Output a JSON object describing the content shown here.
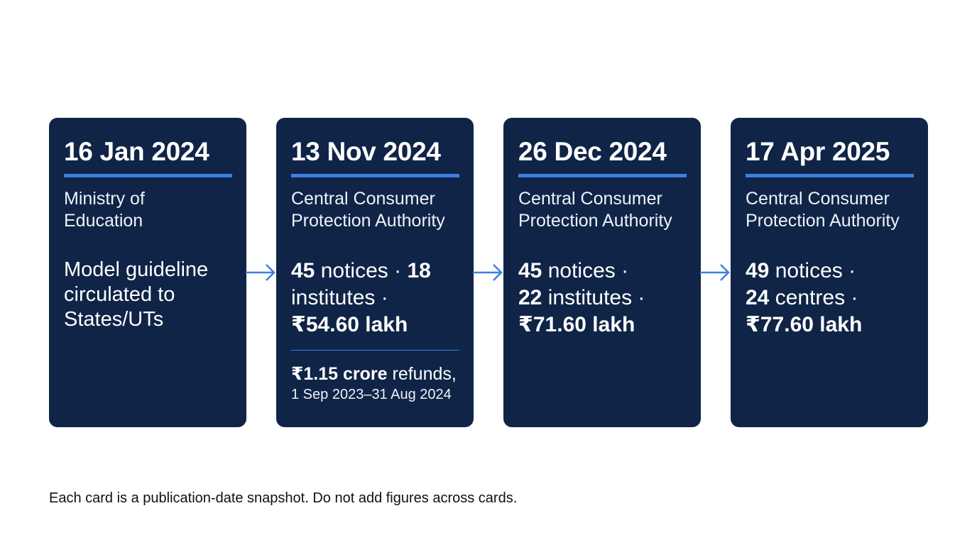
{
  "cards": [
    {
      "date": "16 Jan 2024",
      "org": "Ministry of Education",
      "text": "Model guideline circulated to States/UTs"
    },
    {
      "date": "13 Nov 2024",
      "org": "Central Consumer Protection Authority",
      "notices_num": "45",
      "notices_label": " notices · ",
      "institutes_num": "18",
      "institutes_label": " institutes · ",
      "amount": "₹54.60 lakh",
      "refund_amount": "₹1.15 crore",
      "refund_label": " refunds,",
      "refund_period": "1 Sep 2023–31 Aug 2024"
    },
    {
      "date": "26 Dec 2024",
      "org": "Central Consumer Protection Authority",
      "notices_num": "45",
      "notices_label": " notices · ",
      "institutes_num": "22",
      "institutes_label": " institutes · ",
      "amount": "₹71.60 lakh"
    },
    {
      "date": "17 Apr 2025",
      "org": "Central Consumer Protection Authority",
      "notices_num": "49",
      "notices_label": " notices · ",
      "institutes_num": "24",
      "institutes_label": " centres · ",
      "amount": "₹77.60 lakh"
    }
  ],
  "caption": "Each card is a publication-date snapshot. Do not add figures across cards.",
  "colors": {
    "card_bg": "#0f2447",
    "accent": "#3d7fe0",
    "text": "#ffffff"
  },
  "icons": [
    "arrow-right-icon"
  ]
}
